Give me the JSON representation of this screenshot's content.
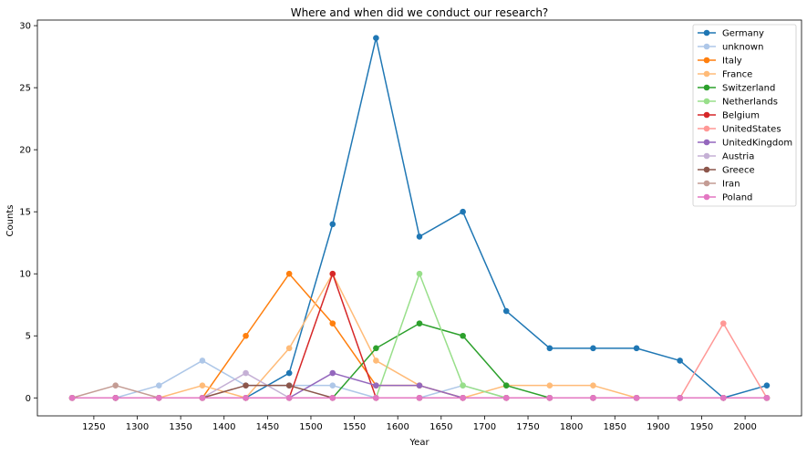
{
  "chart_data": {
    "type": "line",
    "title": "Where and when did we conduct our research?",
    "xlabel": "Year",
    "ylabel": "Counts",
    "x": [
      1225,
      1275,
      1325,
      1375,
      1425,
      1475,
      1525,
      1575,
      1625,
      1675,
      1725,
      1775,
      1825,
      1875,
      1925,
      1975,
      2025
    ],
    "xlim": [
      1185,
      2065
    ],
    "ylim": [
      -1.45,
      30.45
    ],
    "xticks": [
      "1250",
      "1300",
      "1350",
      "1400",
      "1450",
      "1500",
      "1550",
      "1600",
      "1650",
      "1700",
      "1750",
      "1800",
      "1850",
      "1900",
      "1950",
      "2000"
    ],
    "yticks": [
      "0",
      "5",
      "10",
      "15",
      "20",
      "25",
      "30"
    ],
    "grid": false,
    "legend_position": "top-right",
    "series": [
      {
        "name": "Germany",
        "color": "#1f77b4",
        "values": [
          0,
          0,
          0,
          0,
          0,
          2,
          14,
          29,
          13,
          15,
          7,
          4,
          4,
          4,
          3,
          0,
          1
        ]
      },
      {
        "name": "unknown",
        "color": "#aec7e8",
        "values": [
          0,
          0,
          1,
          3,
          1,
          1,
          1,
          0,
          0,
          1,
          0,
          0,
          0,
          0,
          0,
          0,
          0
        ]
      },
      {
        "name": "Italy",
        "color": "#ff7f0e",
        "values": [
          0,
          0,
          0,
          0,
          5,
          10,
          6,
          1,
          1,
          0,
          0,
          0,
          0,
          0,
          0,
          0,
          0
        ]
      },
      {
        "name": "France",
        "color": "#ffbb78",
        "values": [
          0,
          0,
          0,
          1,
          0,
          4,
          10,
          3,
          1,
          0,
          1,
          1,
          1,
          0,
          0,
          0,
          0
        ]
      },
      {
        "name": "Switzerland",
        "color": "#2ca02c",
        "values": [
          0,
          0,
          0,
          0,
          0,
          0,
          0,
          4,
          6,
          5,
          1,
          0,
          0,
          0,
          0,
          0,
          0
        ]
      },
      {
        "name": "Netherlands",
        "color": "#98df8a",
        "values": [
          0,
          0,
          0,
          0,
          0,
          0,
          0,
          0,
          10,
          1,
          0,
          0,
          0,
          0,
          0,
          0,
          0
        ]
      },
      {
        "name": "Belgium",
        "color": "#d62728",
        "values": [
          0,
          0,
          0,
          0,
          0,
          0,
          10,
          0,
          0,
          0,
          0,
          0,
          0,
          0,
          0,
          0,
          0
        ]
      },
      {
        "name": "UnitedStates",
        "color": "#ff9896",
        "values": [
          0,
          0,
          0,
          0,
          0,
          0,
          0,
          0,
          0,
          0,
          0,
          0,
          0,
          0,
          0,
          6,
          0
        ]
      },
      {
        "name": "UnitedKingdom",
        "color": "#9467bd",
        "values": [
          0,
          0,
          0,
          0,
          0,
          0,
          2,
          1,
          1,
          0,
          0,
          0,
          0,
          0,
          0,
          0,
          0
        ]
      },
      {
        "name": "Austria",
        "color": "#c5b0d5",
        "values": [
          0,
          0,
          0,
          0,
          2,
          0,
          0,
          0,
          0,
          0,
          0,
          0,
          0,
          0,
          0,
          0,
          0
        ]
      },
      {
        "name": "Greece",
        "color": "#8c564b",
        "values": [
          0,
          0,
          0,
          0,
          1,
          1,
          0,
          0,
          0,
          0,
          0,
          0,
          0,
          0,
          0,
          0,
          0
        ]
      },
      {
        "name": "Iran",
        "color": "#c49c94",
        "values": [
          0,
          1,
          0,
          0,
          0,
          0,
          0,
          0,
          0,
          0,
          0,
          0,
          0,
          0,
          0,
          0,
          0
        ]
      },
      {
        "name": "Poland",
        "color": "#e377c2",
        "values": [
          0,
          0,
          0,
          0,
          0,
          0,
          0,
          0,
          0,
          0,
          0,
          0,
          0,
          0,
          0,
          0,
          0
        ]
      }
    ]
  }
}
